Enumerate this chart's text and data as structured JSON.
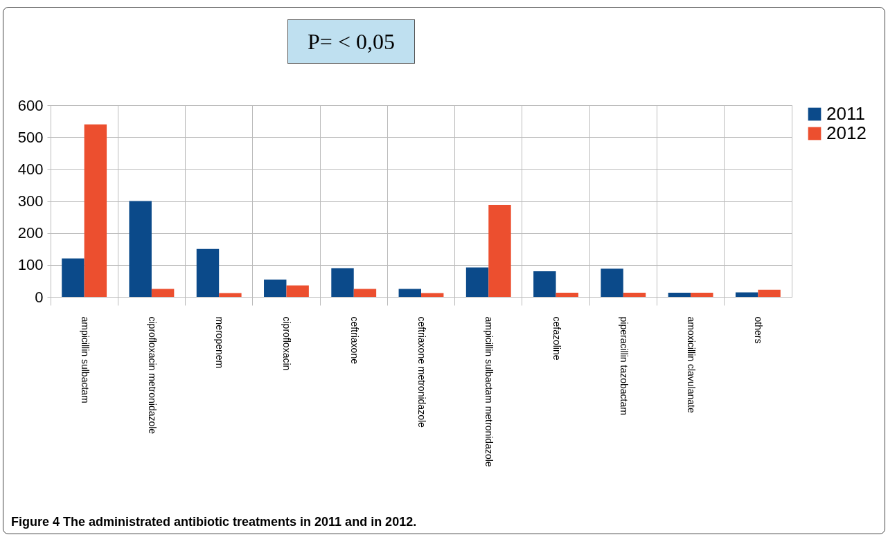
{
  "chart_data": {
    "type": "bar",
    "categories": [
      "ampicillin sulbactam",
      "ciprofloxacin metronidazole",
      "meropenem",
      "ciprofloxacin",
      "ceftriaxone",
      "ceftriaxone metronidazole",
      "ampicillin sulbactam metronidazole",
      "cefazoline",
      "piperacillin tazobactam",
      "amoxicillin clavulanate",
      "others"
    ],
    "series": [
      {
        "name": "2011",
        "color": "#0b4a8a",
        "values": [
          120,
          300,
          150,
          54,
          90,
          25,
          92,
          80,
          88,
          13,
          14
        ]
      },
      {
        "name": "2012",
        "color": "#ec4f2f",
        "values": [
          540,
          25,
          12,
          36,
          25,
          12,
          288,
          13,
          13,
          13,
          22
        ]
      }
    ],
    "ylim": [
      0,
      600
    ],
    "yticks": [
      0,
      100,
      200,
      300,
      400,
      500,
      600
    ],
    "grid": true,
    "legend": "right",
    "annotations": [
      "P= < 0,05",
      "Figure 4 The administrated antibiotic treatments in 2011 and in 2012."
    ]
  }
}
